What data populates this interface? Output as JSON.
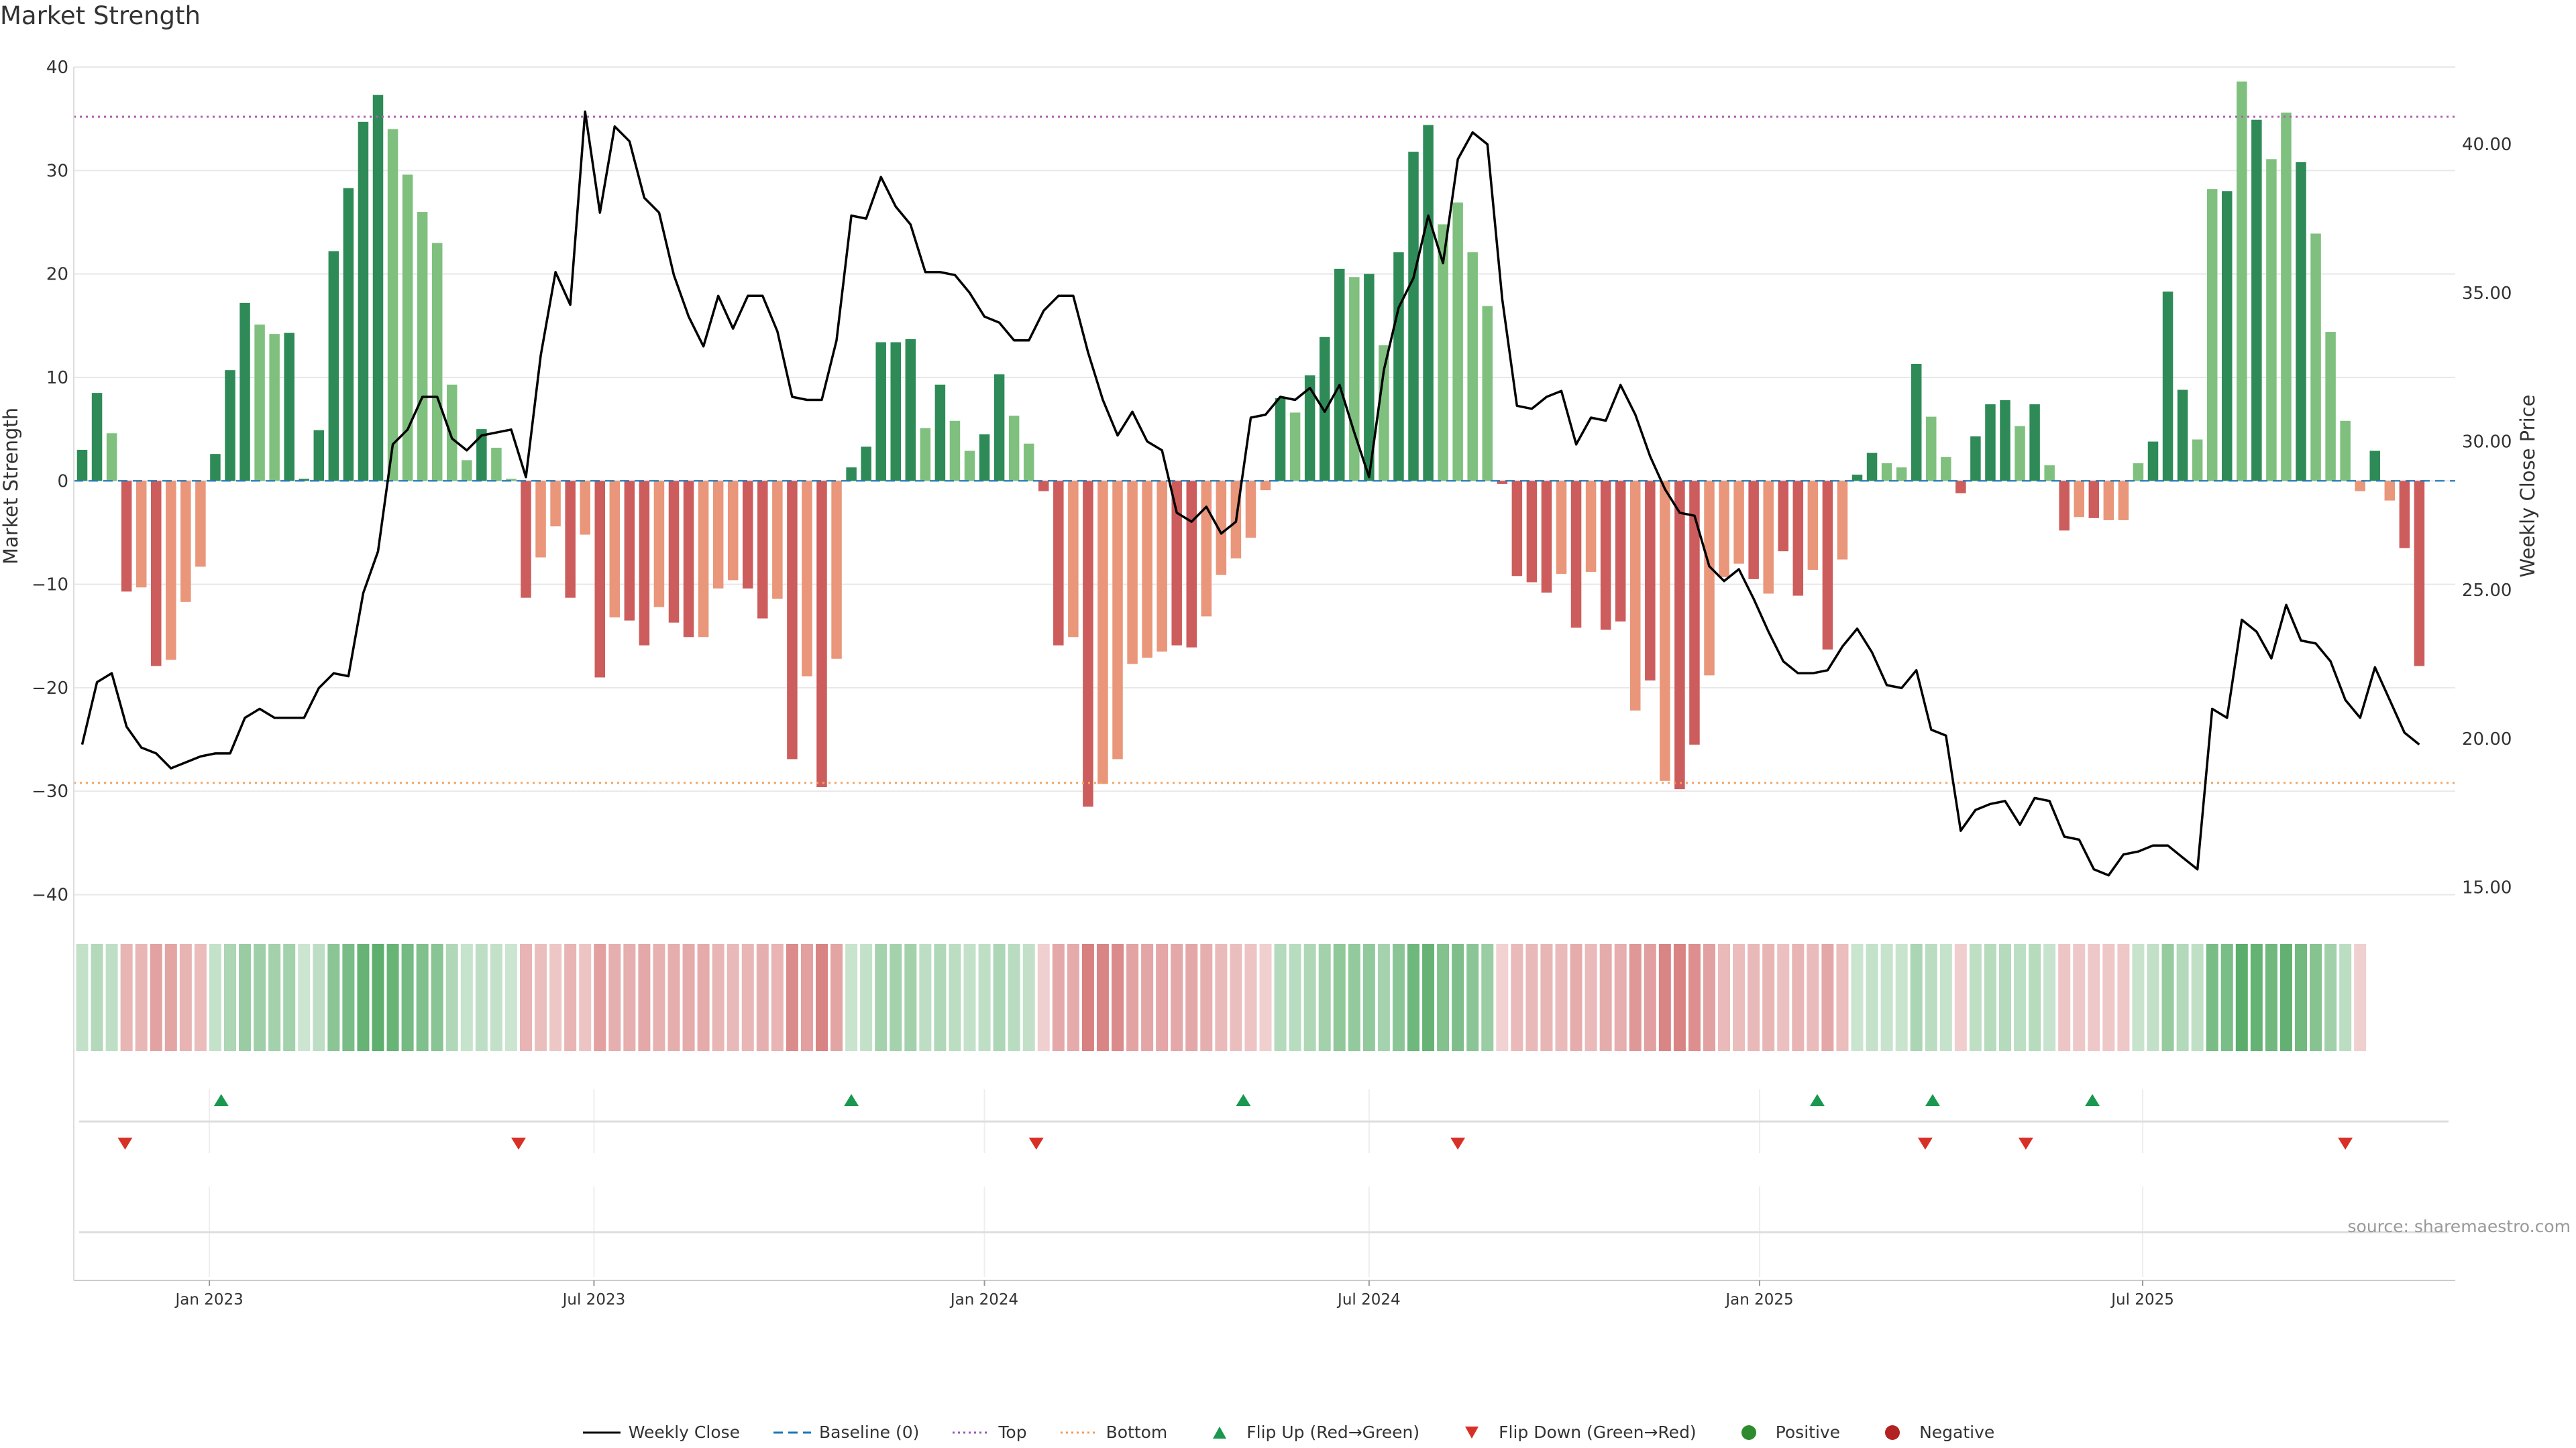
{
  "page_title": "Market Strength",
  "source_note": "source: sharemaestro.com",
  "legend": [
    {
      "label": "Weekly Close",
      "symbol": "line-solid",
      "color": "#000000"
    },
    {
      "label": "Baseline (0)",
      "symbol": "line-dash",
      "color": "#1f77b4"
    },
    {
      "label": "Top",
      "symbol": "line-dot",
      "color": "#9b59b6"
    },
    {
      "label": "Bottom",
      "symbol": "line-dot",
      "color": "#f39c5b"
    },
    {
      "label": "Flip Up (Red→Green)",
      "symbol": "triangle-up",
      "color": "#1a9850"
    },
    {
      "label": "Flip Down (Green→Red)",
      "symbol": "triangle-down",
      "color": "#d73027"
    },
    {
      "label": "Positive",
      "symbol": "dot",
      "color": "#2e8b2e"
    },
    {
      "label": "Negative",
      "symbol": "dot",
      "color": "#b22222"
    }
  ],
  "colors": {
    "pos_strong": "#2e8b57",
    "pos_weak": "#7fc07f",
    "neg_strong": "#cd5c5c",
    "neg_weak": "#e9967a",
    "price_line": "#000000",
    "top_line": "#b05fb0",
    "bottom_line": "#f4a460",
    "baseline": "#1f77b4",
    "flip_up": "#1a9850",
    "flip_down": "#d73027",
    "grid": "#e8e8e8"
  },
  "chart_data": {
    "type": "bar",
    "title": "Market Strength",
    "ylabel": "Market Strength",
    "y2label": "Weekly Close Price",
    "ylim": [
      -41,
      40
    ],
    "y2lim": [
      14.4,
      42.6
    ],
    "yticks": [
      40,
      30,
      20,
      10,
      0,
      -10,
      -20,
      -30,
      -40
    ],
    "ytick_labels": [
      "40",
      "30",
      "20",
      "10",
      "0",
      "−10",
      "−20",
      "−30",
      "−40"
    ],
    "y2ticks": [
      40,
      35,
      30,
      25,
      20,
      15
    ],
    "y2tick_labels": [
      "40.00",
      "35.00",
      "30.00",
      "25.00",
      "20.00",
      "15.00"
    ],
    "top_threshold": 35.2,
    "bottom_threshold": -29.2,
    "x_start_week": 0,
    "xticks": [
      {
        "week": 8.6,
        "label": "Jan 2023"
      },
      {
        "week": 34.6,
        "label": "Jul 2023"
      },
      {
        "week": 61.0,
        "label": "Jan 2024"
      },
      {
        "week": 87.0,
        "label": "Jul 2024"
      },
      {
        "week": 113.4,
        "label": "Jan 2025"
      },
      {
        "week": 139.3,
        "label": "Jul 2025"
      }
    ],
    "strength": [
      3,
      8.5,
      4.6,
      -10.7,
      -10.3,
      -17.9,
      -17.3,
      -11.7,
      -8.3,
      2.6,
      10.7,
      17.2,
      15.1,
      14.2,
      14.3,
      0.2,
      4.9,
      22.2,
      28.3,
      34.7,
      37.3,
      34.0,
      29.6,
      26.0,
      23.0,
      9.3,
      2.0,
      5.0,
      3.2,
      0.2,
      -11.3,
      -7.4,
      -4.4,
      -11.3,
      -5.2,
      -19.0,
      -13.2,
      -13.5,
      -15.9,
      -12.2,
      -13.7,
      -15.1,
      -15.1,
      -10.4,
      -9.6,
      -10.4,
      -13.3,
      -11.4,
      -26.9,
      -18.9,
      -29.6,
      -17.2,
      1.3,
      3.3,
      13.4,
      13.4,
      13.7,
      5.1,
      9.3,
      5.8,
      2.9,
      4.5,
      10.3,
      6.3,
      3.6,
      -1.0,
      -15.9,
      -15.1,
      -31.5,
      -29.3,
      -26.9,
      -17.7,
      -17.1,
      -16.5,
      -15.9,
      -16.1,
      -13.1,
      -9.1,
      -7.5,
      -5.5,
      -0.9,
      8.0,
      6.6,
      10.2,
      13.9,
      20.5,
      19.7,
      20.0,
      13.1,
      22.1,
      31.8,
      34.4,
      24.8,
      26.9,
      22.1,
      16.9,
      -0.3,
      -9.2,
      -9.8,
      -10.8,
      -9.0,
      -14.2,
      -8.8,
      -14.4,
      -13.6,
      -22.2,
      -19.3,
      -29.0,
      -29.8,
      -25.5,
      -18.8,
      -9.3,
      -8.0,
      -9.5,
      -10.9,
      -6.8,
      -11.1,
      -8.6,
      -16.3,
      -7.6,
      0.6,
      2.7,
      1.7,
      1.3,
      11.3,
      6.2,
      2.3,
      -1.2,
      4.3,
      7.4,
      7.8,
      5.3,
      7.4,
      1.5,
      -4.8,
      -3.5,
      -3.6,
      -3.8,
      -3.8,
      1.7,
      3.8,
      18.3,
      8.8,
      4.0,
      28.2,
      28.0,
      38.6,
      34.9,
      31.1,
      35.6,
      30.8,
      23.9,
      14.4,
      5.8,
      -1.0,
      2.9,
      -1.9,
      -6.5,
      -17.9
    ],
    "strong_mask": [
      1,
      1,
      0,
      1,
      0,
      1,
      0,
      0,
      0,
      1,
      1,
      1,
      0,
      0,
      1,
      1,
      1,
      1,
      1,
      1,
      1,
      0,
      0,
      0,
      0,
      0,
      0,
      1,
      0,
      0,
      1,
      0,
      0,
      1,
      0,
      1,
      0,
      1,
      1,
      0,
      1,
      1,
      0,
      0,
      0,
      1,
      1,
      0,
      1,
      0,
      1,
      0,
      1,
      1,
      1,
      1,
      1,
      0,
      1,
      0,
      0,
      1,
      1,
      0,
      0,
      1,
      1,
      0,
      1,
      0,
      0,
      0,
      0,
      0,
      1,
      1,
      0,
      0,
      0,
      0,
      0,
      1,
      0,
      1,
      1,
      1,
      0,
      1,
      0,
      1,
      1,
      1,
      0,
      0,
      0,
      0,
      1,
      1,
      1,
      1,
      0,
      1,
      0,
      1,
      1,
      0,
      1,
      0,
      1,
      1,
      0,
      0,
      0,
      1,
      0,
      1,
      1,
      0,
      1,
      0,
      1,
      1,
      0,
      0,
      1,
      0,
      0,
      1,
      1,
      1,
      1,
      0,
      1,
      0,
      1,
      0,
      1,
      0,
      0,
      0,
      1,
      1,
      1,
      0,
      0,
      1,
      0,
      1,
      0,
      0,
      1,
      0,
      0,
      0,
      0,
      1,
      0,
      1,
      1
    ],
    "price": [
      19.8,
      21.9,
      22.2,
      20.4,
      19.7,
      19.5,
      19.0,
      19.2,
      19.4,
      19.5,
      19.5,
      20.7,
      21.0,
      20.7,
      20.7,
      20.7,
      21.7,
      22.2,
      22.1,
      24.9,
      26.3,
      29.9,
      30.4,
      31.5,
      31.5,
      30.1,
      29.7,
      30.2,
      30.3,
      30.4,
      28.8,
      32.9,
      35.7,
      34.6,
      41.1,
      37.7,
      40.6,
      40.1,
      38.2,
      37.7,
      35.6,
      34.2,
      33.2,
      34.9,
      33.8,
      34.9,
      34.9,
      33.7,
      31.5,
      31.4,
      31.4,
      33.4,
      37.6,
      37.5,
      38.9,
      37.9,
      37.3,
      35.7,
      35.7,
      35.6,
      35.0,
      34.2,
      34.0,
      33.4,
      33.4,
      34.4,
      34.9,
      34.9,
      33.0,
      31.4,
      30.2,
      31.0,
      30.0,
      29.7,
      27.6,
      27.3,
      27.8,
      26.9,
      27.3,
      30.8,
      30.9,
      31.5,
      31.4,
      31.8,
      31.0,
      31.9,
      30.3,
      28.8,
      32.4,
      34.5,
      35.5,
      37.6,
      36.0,
      39.5,
      40.4,
      40.0,
      34.8,
      31.2,
      31.1,
      31.5,
      31.7,
      29.9,
      30.8,
      30.7,
      31.9,
      30.9,
      29.5,
      28.4,
      27.6,
      27.5,
      25.8,
      25.3,
      25.7,
      24.7,
      23.6,
      22.6,
      22.2,
      22.2,
      22.3,
      23.1,
      23.7,
      22.9,
      21.8,
      21.7,
      22.3,
      20.3,
      20.1,
      16.9,
      17.6,
      17.8,
      17.9,
      17.1,
      18.0,
      17.9,
      16.7,
      16.6,
      15.6,
      15.4,
      16.1,
      16.2,
      16.4,
      16.4,
      16.0,
      15.6,
      21.0,
      20.7,
      24.0,
      23.6,
      22.7,
      24.5,
      23.3,
      23.2,
      22.6,
      21.3,
      20.7,
      22.4,
      21.3,
      20.2,
      19.8
    ],
    "flip_up_weeks": [
      9.4,
      52.0,
      78.5,
      117.3,
      125.1,
      135.9
    ],
    "flip_down_weeks": [
      2.9,
      29.5,
      64.5,
      93.0,
      124.6,
      131.4,
      153.0
    ],
    "heat_weeks": 155
  }
}
